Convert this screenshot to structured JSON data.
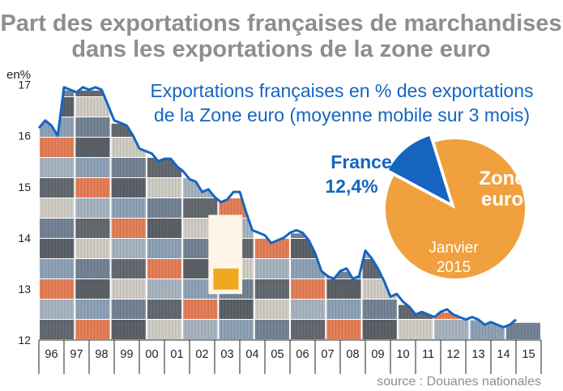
{
  "title_line1": "Part des exportations françaises de marchandises",
  "title_line2": "dans les exportations de la zone euro",
  "source": "source : Douanes nationales",
  "colors": {
    "line": "#1565c0",
    "pie_rest": "#f0a03c",
    "pie_france": "#1565c0",
    "title": "#8e8e8e"
  },
  "chart_data": {
    "type": "line",
    "legend_line1": "Exportations françaises en % des exportations",
    "legend_line2": "de la Zone euro (moyenne mobile sur 3 mois)",
    "ylabel": "en%",
    "ylim": [
      12,
      17.2
    ],
    "yticks": [
      "12",
      "13",
      "14",
      "15",
      "16",
      "17"
    ],
    "xticks": [
      "96",
      "97",
      "98",
      "99",
      "00",
      "01",
      "02",
      "03",
      "04",
      "05",
      "06",
      "07",
      "08",
      "09",
      "10",
      "11",
      "12",
      "13",
      "14",
      "15"
    ],
    "x": [
      1996.0,
      1996.25,
      1996.5,
      1996.75,
      1997.0,
      1997.25,
      1997.5,
      1997.75,
      1998.0,
      1998.25,
      1998.5,
      1998.75,
      1999.0,
      1999.25,
      1999.5,
      1999.75,
      2000.0,
      2000.25,
      2000.5,
      2000.75,
      2001.0,
      2001.25,
      2001.5,
      2001.75,
      2002.0,
      2002.25,
      2002.5,
      2002.75,
      2003.0,
      2003.25,
      2003.5,
      2003.75,
      2004.0,
      2004.25,
      2004.5,
      2004.75,
      2005.0,
      2005.25,
      2005.5,
      2005.75,
      2006.0,
      2006.25,
      2006.5,
      2006.75,
      2007.0,
      2007.25,
      2007.5,
      2007.75,
      2008.0,
      2008.25,
      2008.5,
      2008.75,
      2009.0,
      2009.25,
      2009.5,
      2009.75,
      2010.0,
      2010.25,
      2010.5,
      2010.75,
      2011.0,
      2011.25,
      2011.5,
      2011.75,
      2012.0,
      2012.25,
      2012.5,
      2012.75,
      2013.0,
      2013.25,
      2013.5,
      2013.75,
      2014.0,
      2014.25,
      2014.5,
      2014.75,
      2015.0
    ],
    "series": [
      {
        "values": [
          16.15,
          16.3,
          16.2,
          16.0,
          16.95,
          16.9,
          16.85,
          16.95,
          16.9,
          16.95,
          16.9,
          16.6,
          16.3,
          16.25,
          16.2,
          16.0,
          15.75,
          15.7,
          15.65,
          15.5,
          15.55,
          15.55,
          15.4,
          15.3,
          15.15,
          15.1,
          14.9,
          14.95,
          14.8,
          14.7,
          14.75,
          14.9,
          14.9,
          14.5,
          14.15,
          14.1,
          14.05,
          13.9,
          13.95,
          14.0,
          14.1,
          14.15,
          14.1,
          13.95,
          13.7,
          13.35,
          13.25,
          13.2,
          13.35,
          13.4,
          13.2,
          13.25,
          13.75,
          13.6,
          13.4,
          13.15,
          12.85,
          12.9,
          12.75,
          12.65,
          12.5,
          12.55,
          12.5,
          12.45,
          12.55,
          12.6,
          12.5,
          12.45,
          12.4,
          12.45,
          12.4,
          12.3,
          12.35,
          12.3,
          12.25,
          12.3,
          12.4
        ]
      }
    ],
    "pie": {
      "slices": [
        {
          "label": "France",
          "value": 12.4,
          "value_label": "12,4%"
        },
        {
          "label_line1": "Zone",
          "label_line2": "euro",
          "value": 87.6
        }
      ],
      "note_line1": "Janvier",
      "note_line2": "2015"
    }
  }
}
